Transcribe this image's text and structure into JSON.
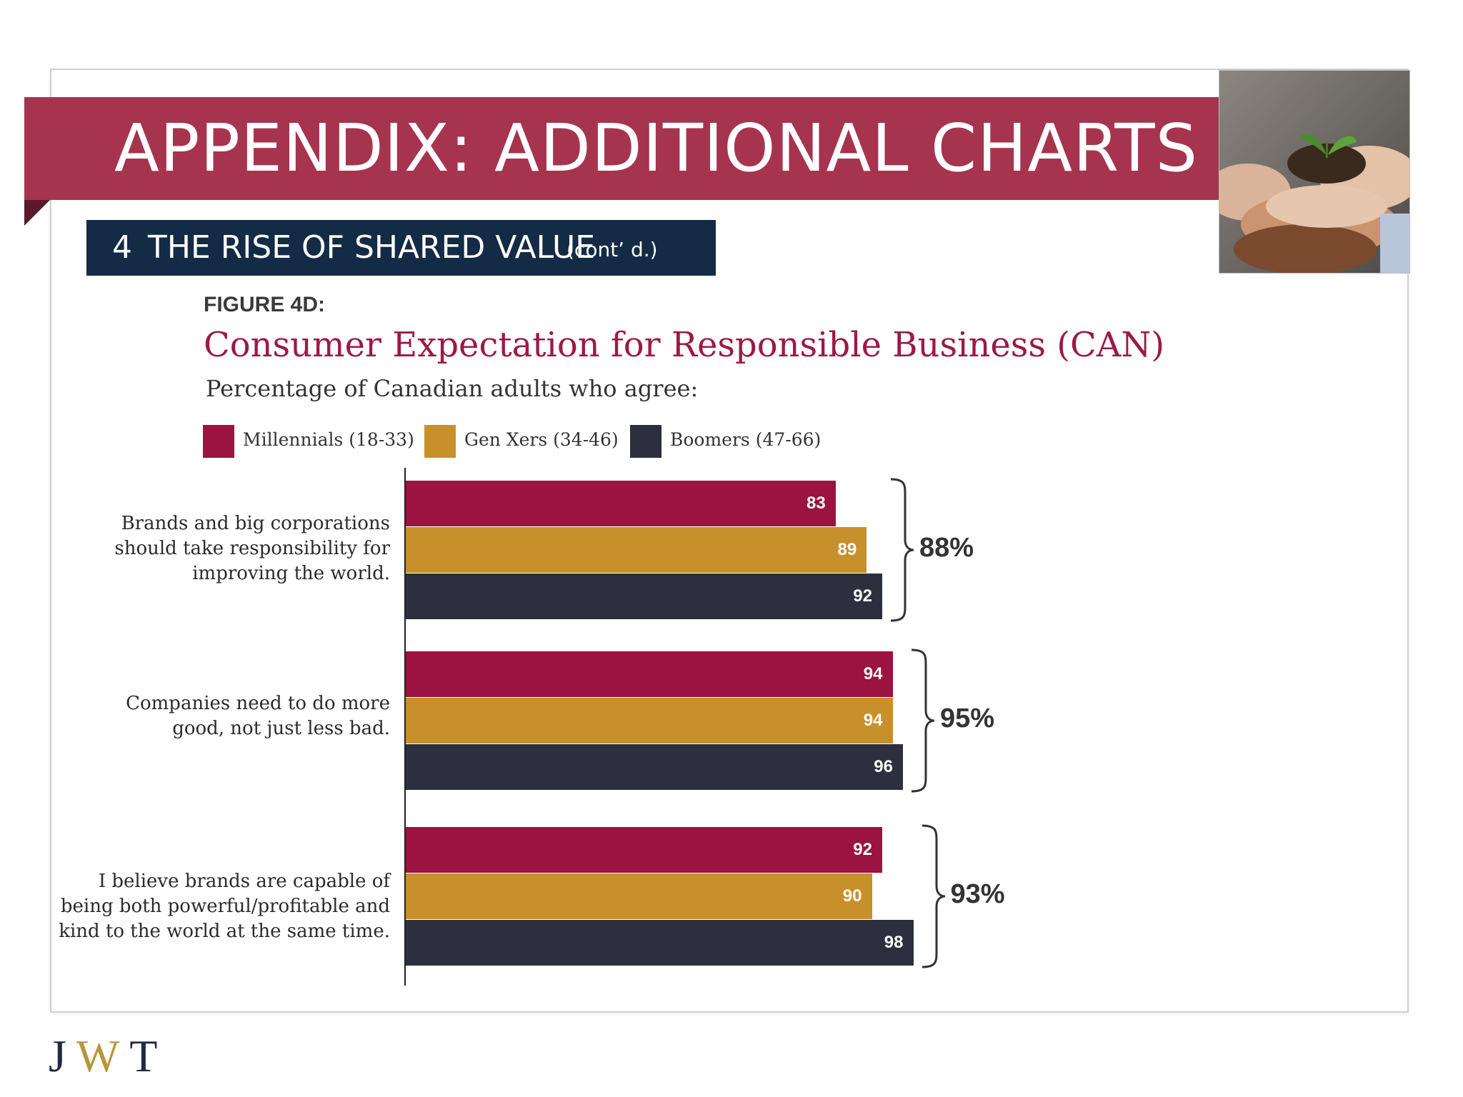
{
  "slide": {
    "title": "APPENDIX: ADDITIONAL CHARTS",
    "section_number": "4",
    "section_title": "THE RISE OF SHARED VALUE",
    "section_suffix": "(cont’ d.)",
    "figure_label": "FIGURE 4D:",
    "logo_letters": [
      "J",
      "W",
      "T"
    ]
  },
  "colors": {
    "banner": "#a6344f",
    "section_bar": "#132b45",
    "millennials": "#9b1340",
    "gen_x": "#c8902a",
    "boomers": "#2d2f3e"
  },
  "chart_data": {
    "type": "bar",
    "orientation": "horizontal",
    "title": "Consumer Expectation for Responsible Business (CAN)",
    "subtitle": "Percentage of Canadian adults who agree:",
    "legend_position": "top",
    "categories": [
      "Brands and big corporations\nshould take responsibility for\nimproving the world.",
      "Companies need to do more\ngood, not just less bad.",
      "I believe brands are capable of\nbeing both powerful/profitable and\nkind to the world at the same time."
    ],
    "series": [
      {
        "name": "Millennials (18-33)",
        "values": [
          83,
          94,
          92
        ]
      },
      {
        "name": "Gen Xers (34-46)",
        "values": [
          89,
          94,
          90
        ]
      },
      {
        "name": "Boomers (47-66)",
        "values": [
          92,
          96,
          98
        ]
      }
    ],
    "group_totals": [
      "88%",
      "95%",
      "93%"
    ],
    "xlim": [
      0,
      100
    ],
    "grid": false
  }
}
